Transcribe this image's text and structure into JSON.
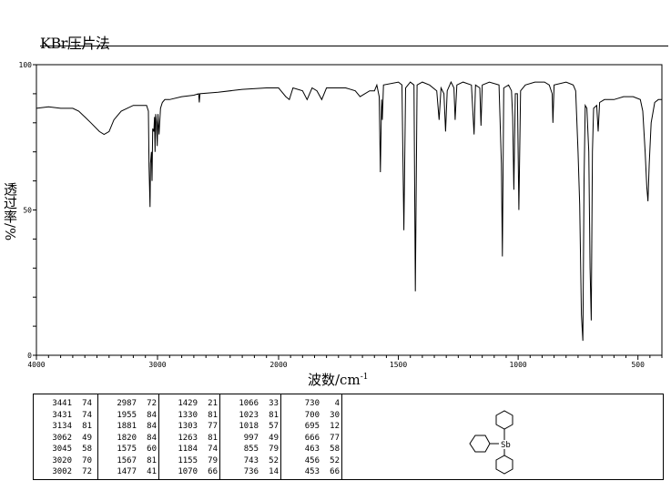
{
  "header": {
    "title": "KBr压片法"
  },
  "chart_data": {
    "type": "line",
    "title": "KBr压片法",
    "xlabel": "波数/cm",
    "xlabel_exp": "-1",
    "ylabel": "透过率/%",
    "xlim": [
      4000,
      400
    ],
    "x_scale_break": 2000,
    "ylim": [
      0,
      100
    ],
    "grid": false,
    "x_ticks": [
      4000,
      3000,
      2000,
      1500,
      1000,
      500
    ],
    "y_ticks": [
      0,
      50,
      100
    ],
    "series": [
      {
        "points": [
          [
            4000,
            85
          ],
          [
            3900,
            85.5
          ],
          [
            3800,
            85
          ],
          [
            3700,
            85
          ],
          [
            3650,
            84
          ],
          [
            3600,
            82
          ],
          [
            3550,
            80
          ],
          [
            3480,
            77
          ],
          [
            3441,
            76
          ],
          [
            3400,
            77
          ],
          [
            3360,
            81
          ],
          [
            3300,
            84
          ],
          [
            3200,
            86
          ],
          [
            3134,
            86
          ],
          [
            3090,
            86
          ],
          [
            3075,
            84
          ],
          [
            3070,
            65
          ],
          [
            3062,
            51
          ],
          [
            3058,
            66
          ],
          [
            3050,
            70
          ],
          [
            3045,
            60
          ],
          [
            3040,
            78
          ],
          [
            3030,
            77
          ],
          [
            3025,
            82
          ],
          [
            3020,
            70
          ],
          [
            3015,
            83
          ],
          [
            3008,
            80
          ],
          [
            3002,
            72
          ],
          [
            2996,
            83
          ],
          [
            2987,
            76
          ],
          [
            2975,
            85
          ],
          [
            2960,
            87
          ],
          [
            2940,
            88
          ],
          [
            2900,
            88
          ],
          [
            2800,
            89
          ],
          [
            2700,
            89.5
          ],
          [
            2660,
            90
          ],
          [
            2655,
            87
          ],
          [
            2650,
            90
          ],
          [
            2500,
            90.5
          ],
          [
            2300,
            91.5
          ],
          [
            2100,
            92
          ],
          [
            2000,
            92
          ],
          [
            1990,
            91
          ],
          [
            1970,
            89
          ],
          [
            1955,
            88
          ],
          [
            1940,
            92
          ],
          [
            1900,
            91
          ],
          [
            1881,
            88
          ],
          [
            1860,
            92
          ],
          [
            1840,
            91
          ],
          [
            1820,
            88
          ],
          [
            1800,
            92
          ],
          [
            1720,
            92
          ],
          [
            1680,
            91
          ],
          [
            1660,
            89
          ],
          [
            1640,
            90
          ],
          [
            1620,
            91
          ],
          [
            1600,
            91
          ],
          [
            1590,
            93
          ],
          [
            1580,
            89
          ],
          [
            1575,
            63
          ],
          [
            1570,
            88
          ],
          [
            1567,
            81
          ],
          [
            1562,
            93
          ],
          [
            1500,
            94
          ],
          [
            1485,
            93
          ],
          [
            1477,
            43
          ],
          [
            1470,
            92
          ],
          [
            1450,
            94
          ],
          [
            1435,
            93
          ],
          [
            1429,
            22
          ],
          [
            1422,
            93
          ],
          [
            1400,
            94
          ],
          [
            1370,
            93
          ],
          [
            1340,
            91
          ],
          [
            1330,
            81
          ],
          [
            1322,
            92
          ],
          [
            1310,
            90
          ],
          [
            1303,
            77
          ],
          [
            1296,
            91
          ],
          [
            1280,
            94
          ],
          [
            1268,
            92
          ],
          [
            1263,
            81
          ],
          [
            1256,
            93
          ],
          [
            1230,
            94
          ],
          [
            1195,
            93
          ],
          [
            1184,
            76
          ],
          [
            1178,
            93
          ],
          [
            1160,
            92
          ],
          [
            1155,
            79
          ],
          [
            1150,
            93
          ],
          [
            1120,
            94
          ],
          [
            1080,
            93
          ],
          [
            1070,
            66
          ],
          [
            1066,
            34
          ],
          [
            1060,
            92
          ],
          [
            1040,
            93
          ],
          [
            1028,
            91
          ],
          [
            1023,
            82
          ],
          [
            1018,
            57
          ],
          [
            1012,
            90
          ],
          [
            1003,
            90
          ],
          [
            997,
            50
          ],
          [
            990,
            91
          ],
          [
            970,
            93
          ],
          [
            930,
            94
          ],
          [
            890,
            94
          ],
          [
            870,
            93
          ],
          [
            858,
            90
          ],
          [
            855,
            80
          ],
          [
            850,
            93
          ],
          [
            800,
            94
          ],
          [
            770,
            93
          ],
          [
            760,
            91
          ],
          [
            750,
            70
          ],
          [
            743,
            52
          ],
          [
            736,
            14
          ],
          [
            730,
            5
          ],
          [
            725,
            60
          ],
          [
            720,
            86
          ],
          [
            713,
            85
          ],
          [
            705,
            70
          ],
          [
            700,
            30
          ],
          [
            695,
            12
          ],
          [
            690,
            70
          ],
          [
            685,
            85
          ],
          [
            672,
            86
          ],
          [
            666,
            77
          ],
          [
            660,
            87
          ],
          [
            640,
            88
          ],
          [
            600,
            88
          ],
          [
            560,
            89
          ],
          [
            520,
            89
          ],
          [
            490,
            88
          ],
          [
            480,
            84
          ],
          [
            470,
            70
          ],
          [
            463,
            58
          ],
          [
            458,
            53
          ],
          [
            453,
            66
          ],
          [
            445,
            80
          ],
          [
            430,
            87
          ],
          [
            415,
            88
          ],
          [
            400,
            88
          ]
        ]
      }
    ]
  },
  "peak_table": [
    [
      [
        "3441",
        "74"
      ],
      [
        "3431",
        "74"
      ],
      [
        "3134",
        "81"
      ],
      [
        "3062",
        "49"
      ],
      [
        "3045",
        "58"
      ],
      [
        "3020",
        "70"
      ],
      [
        "3002",
        "72"
      ]
    ],
    [
      [
        "2987",
        "72"
      ],
      [
        "1955",
        "84"
      ],
      [
        "1881",
        "84"
      ],
      [
        "1820",
        "84"
      ],
      [
        "1575",
        "60"
      ],
      [
        "1567",
        "81"
      ],
      [
        "1477",
        "41"
      ]
    ],
    [
      [
        "1429",
        "21"
      ],
      [
        "1330",
        "81"
      ],
      [
        "1303",
        "77"
      ],
      [
        "1263",
        "81"
      ],
      [
        "1184",
        "74"
      ],
      [
        "1155",
        "79"
      ],
      [
        "1070",
        "66"
      ]
    ],
    [
      [
        "1066",
        "33"
      ],
      [
        "1023",
        "81"
      ],
      [
        "1018",
        "57"
      ],
      [
        "997",
        "49"
      ],
      [
        "855",
        "79"
      ],
      [
        "743",
        "52"
      ],
      [
        "736",
        "14"
      ]
    ],
    [
      [
        "730",
        "4"
      ],
      [
        "700",
        "30"
      ],
      [
        "695",
        "12"
      ],
      [
        "666",
        "77"
      ],
      [
        "463",
        "58"
      ],
      [
        "456",
        "52"
      ],
      [
        "453",
        "66"
      ]
    ]
  ],
  "structure": {
    "atom_label": "Sb"
  }
}
